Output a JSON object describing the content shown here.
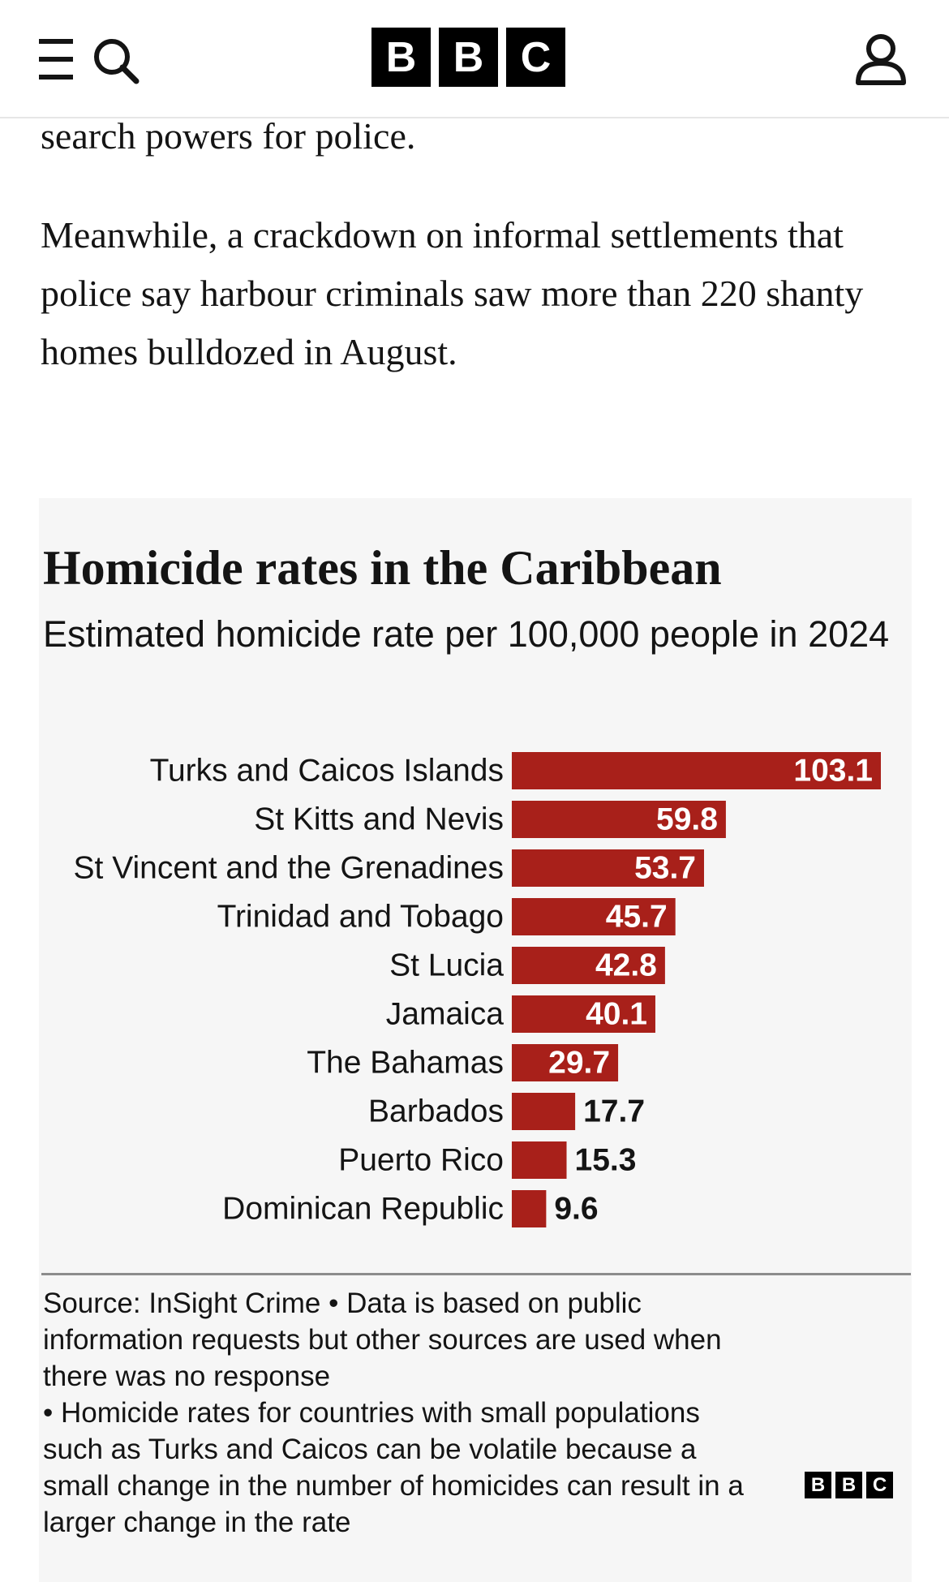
{
  "header": {
    "logo_letters": [
      "B",
      "B",
      "C"
    ],
    "icons": {
      "menu": "menu-icon",
      "search": "search-icon",
      "account": "account-icon"
    }
  },
  "article": {
    "paragraph_tail": "search powers for police.",
    "paragraph_2": "Meanwhile, a crackdown on informal settlements that police say harbour criminals saw more than 220 shanty homes bulldozed in August."
  },
  "colors": {
    "bar": "#a8201a",
    "panel_bg": "#f6f6f6",
    "text": "#141414"
  },
  "chart_data": {
    "type": "bar",
    "orientation": "horizontal",
    "title": "Homicide rates in the Caribbean",
    "subtitle": "Estimated homicide rate per 100,000 people in 2024",
    "categories": [
      "Turks and Caicos Islands",
      "St Kitts and Nevis",
      "St Vincent and the Grenadines",
      "Trinidad and Tobago",
      "St Lucia",
      "Jamaica",
      "The Bahamas",
      "Barbados",
      "Puerto Rico",
      "Dominican Republic"
    ],
    "values": [
      103.1,
      59.8,
      53.7,
      45.7,
      42.8,
      40.1,
      29.7,
      17.7,
      15.3,
      9.6
    ],
    "value_labels": [
      "103.1",
      "59.8",
      "53.7",
      "45.7",
      "42.8",
      "40.1",
      "29.7",
      "17.7",
      "15.3",
      "9.6"
    ],
    "xlim": [
      0,
      103.1
    ],
    "grid": false,
    "xlabel": "",
    "ylabel": ""
  },
  "source": {
    "lines": [
      "Source: InSight Crime • Data is based on public",
      "information requests but other sources are used when",
      "there was no response",
      "• Homicide rates for countries with small populations",
      "such as Turks and Caicos can be volatile because a",
      "small change in the number of homicides can result in a",
      "larger change in the rate"
    ]
  },
  "footer_logo_letters": [
    "B",
    "B",
    "C"
  ]
}
